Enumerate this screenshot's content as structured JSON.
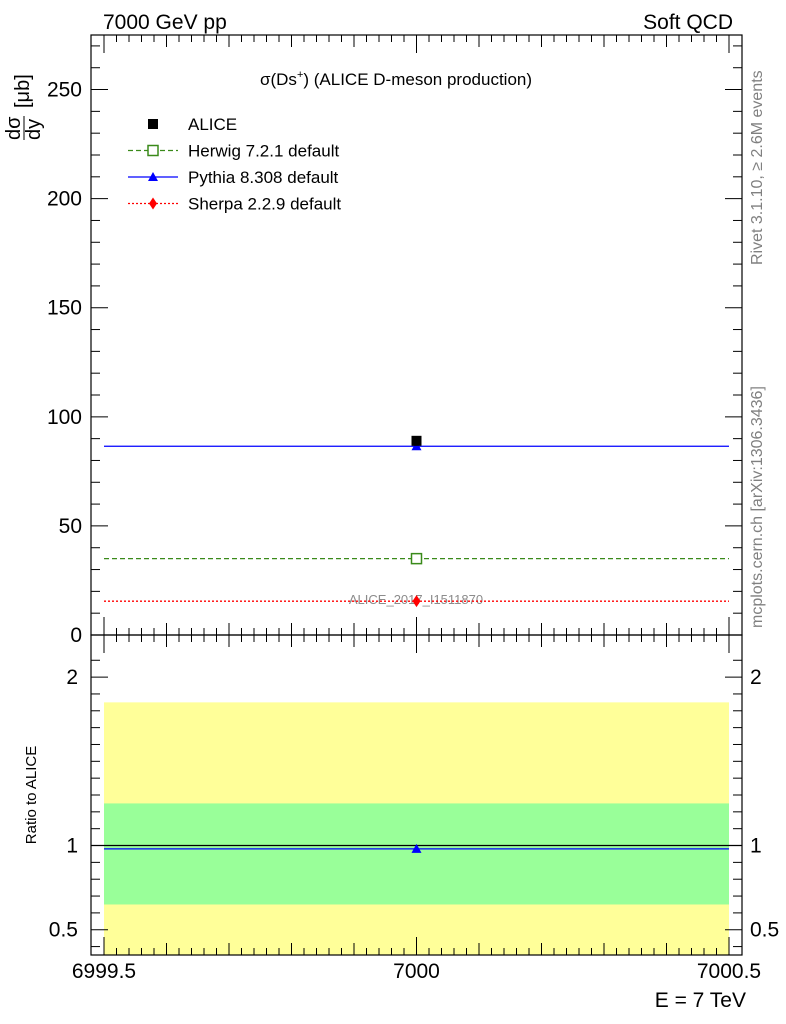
{
  "header": {
    "left_label": "7000 GeV pp",
    "right_label": "Soft QCD"
  },
  "side_labels": {
    "rivet": "Rivet 3.1.10, ≥ 2.6M events",
    "mcplots": "mcplots.cern.ch [arXiv:1306.3436]"
  },
  "colors": {
    "alice": "#000000",
    "herwig": "#3a8a1a",
    "pythia": "#0000ff",
    "sherpa": "#ff0000",
    "band_green": "#99ff99",
    "band_yellow": "#ffff99"
  },
  "chart_data": [
    {
      "type": "scatter",
      "title_main": "σ(Ds",
      "title_sup": "+",
      "title_rest": ") (ALICE D-meson production)",
      "ylabel_num": "dσ",
      "ylabel_den": "dy",
      "ylabel_unit": "[μb]",
      "xlim": [
        6999.5,
        7000.5
      ],
      "ylim": [
        0,
        275
      ],
      "yticks": [
        "0",
        "50",
        "100",
        "150",
        "200",
        "250"
      ],
      "watermark": "ALICE_2017_I1511870",
      "legend_placement": "top-left",
      "series": [
        {
          "name": "ALICE",
          "x": [
            7000
          ],
          "y": [
            89
          ],
          "marker": "square-filled",
          "color": "#000000"
        },
        {
          "name": "Herwig 7.2.1 default",
          "x": [
            7000
          ],
          "y": [
            35
          ],
          "marker": "square-open",
          "color": "#3a8a1a",
          "line": "dashed"
        },
        {
          "name": "Pythia 8.308 default",
          "x": [
            7000
          ],
          "y": [
            86.5
          ],
          "marker": "triangle",
          "color": "#0000ff",
          "line": "solid"
        },
        {
          "name": "Sherpa 2.2.9 default",
          "x": [
            7000
          ],
          "y": [
            15.5
          ],
          "marker": "diamond",
          "color": "#ff0000",
          "line": "dotted"
        }
      ]
    },
    {
      "type": "line",
      "ylabel": "Ratio to ALICE",
      "xlabel": "E = 7 TeV",
      "xlim": [
        6999.5,
        7000.5
      ],
      "ylim": [
        0.35,
        2.25
      ],
      "yticks": [
        "0.5",
        "1",
        "2"
      ],
      "xticks": [
        "6999.5",
        "7000",
        "7000.5"
      ],
      "bands": {
        "inner": [
          0.65,
          1.25
        ],
        "outer": [
          0.35,
          1.85
        ]
      },
      "series": [
        {
          "name": "Pythia 8.308 default",
          "x": [
            7000
          ],
          "y": [
            0.98
          ],
          "color": "#0000ff"
        }
      ]
    }
  ]
}
